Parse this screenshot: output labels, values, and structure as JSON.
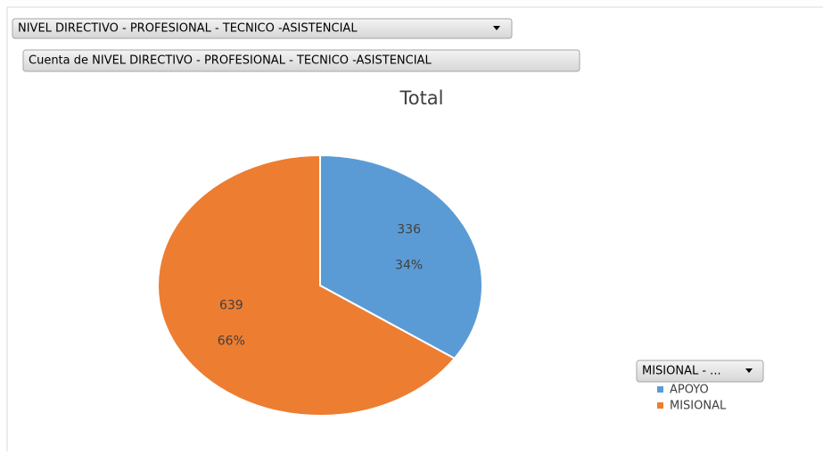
{
  "chart_data": {
    "type": "pie",
    "title": "Total",
    "filter_field": "NIVEL DIRECTIVO - PROFESIONAL - TECNICO -ASISTENCIAL",
    "value_field": "Cuenta de NIVEL DIRECTIVO - PROFESIONAL - TECNICO -ASISTENCIAL",
    "legend_field": "MISIONAL - ...",
    "categories": [
      "APOYO",
      "MISIONAL"
    ],
    "values": [
      336,
      639
    ],
    "percent_labels": [
      "34%",
      "66%"
    ],
    "colors": [
      "#5b9bd5",
      "#ed7d31"
    ]
  }
}
